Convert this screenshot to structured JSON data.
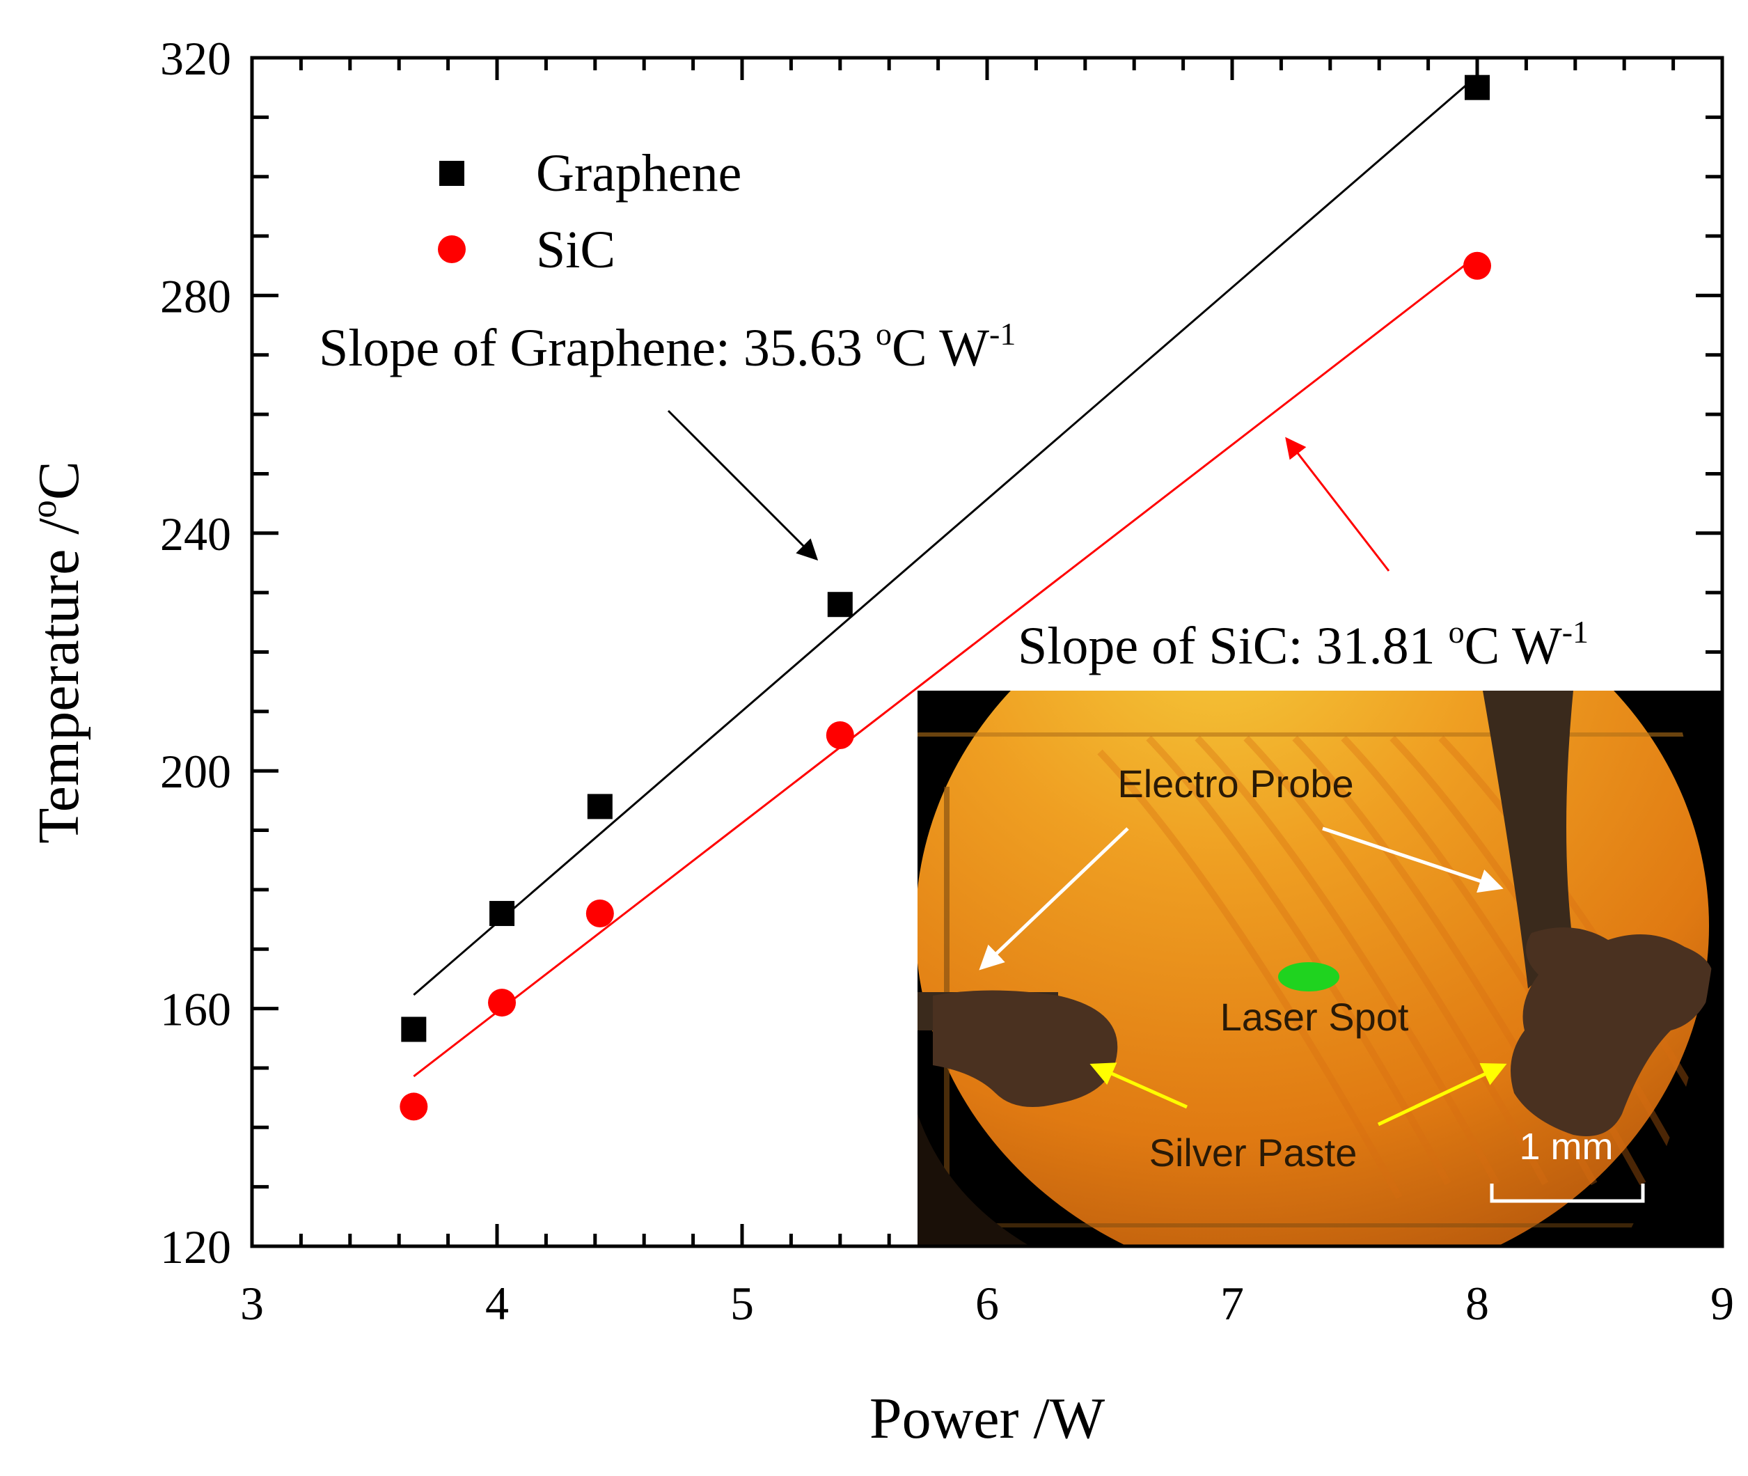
{
  "chart_data": {
    "type": "scatter",
    "xlabel": "Power /W",
    "ylabel_main": "Temperature /",
    "ylabel_sup": "o",
    "ylabel_unit": "C",
    "xlim": [
      3,
      9
    ],
    "ylim": [
      120,
      320
    ],
    "x_ticks": [
      3,
      4,
      5,
      6,
      7,
      8,
      9
    ],
    "x_tick_labels": [
      "3",
      "4",
      "5",
      "6",
      "7",
      "8",
      "9"
    ],
    "y_ticks": [
      120,
      160,
      200,
      240,
      280,
      320
    ],
    "y_tick_labels": [
      "120",
      "160",
      "200",
      "240",
      "280",
      "320"
    ],
    "legend_position": "top-left",
    "series": [
      {
        "name": "Graphene",
        "marker": "square",
        "color": "#000000",
        "x": [
          3.66,
          4.02,
          4.42,
          5.4,
          8.0
        ],
        "y": [
          156.5,
          176,
          194,
          228,
          315
        ],
        "fit": {
          "slope": 35.63,
          "x_start": 3.66,
          "x_end": 8.0,
          "y_start": 162.3,
          "y_end": 317.0
        }
      },
      {
        "name": "SiC",
        "marker": "circle",
        "color": "#ff0000",
        "x": [
          3.66,
          4.02,
          4.42,
          5.4,
          8.0
        ],
        "y": [
          143.5,
          161,
          176,
          206,
          285
        ],
        "fit": {
          "slope": 31.81,
          "x_start": 3.66,
          "x_end": 8.0,
          "y_start": 148.6,
          "y_end": 286.7
        }
      }
    ],
    "annotations": {
      "graphene": {
        "prefix": "Slope of Graphene: 35.63 ",
        "deg": "o",
        "unit": "C W",
        "exp": "-1",
        "color": "#000000"
      },
      "sic": {
        "prefix": "Slope of SiC: 31.81 ",
        "deg": "o",
        "unit": "C W",
        "exp": "-1",
        "color": "#ff0000"
      }
    }
  },
  "inset": {
    "labels": {
      "electro_probe": "Electro Probe",
      "laser_spot": "Laser Spot",
      "silver_paste": "Silver Paste",
      "scale_bar": "1 mm"
    },
    "colors": {
      "background": "#000000",
      "field_bright": "#f5c93a",
      "field_mid": "#ee9520",
      "field_dark": "#c8620f",
      "laser_spot": "#1fd31f",
      "probe": "#3a2a1c",
      "paste": "#4a3120",
      "label_text": "#2a1a06",
      "white_arrow": "#ffffff",
      "yellow_arrow": "#ffff00"
    }
  }
}
